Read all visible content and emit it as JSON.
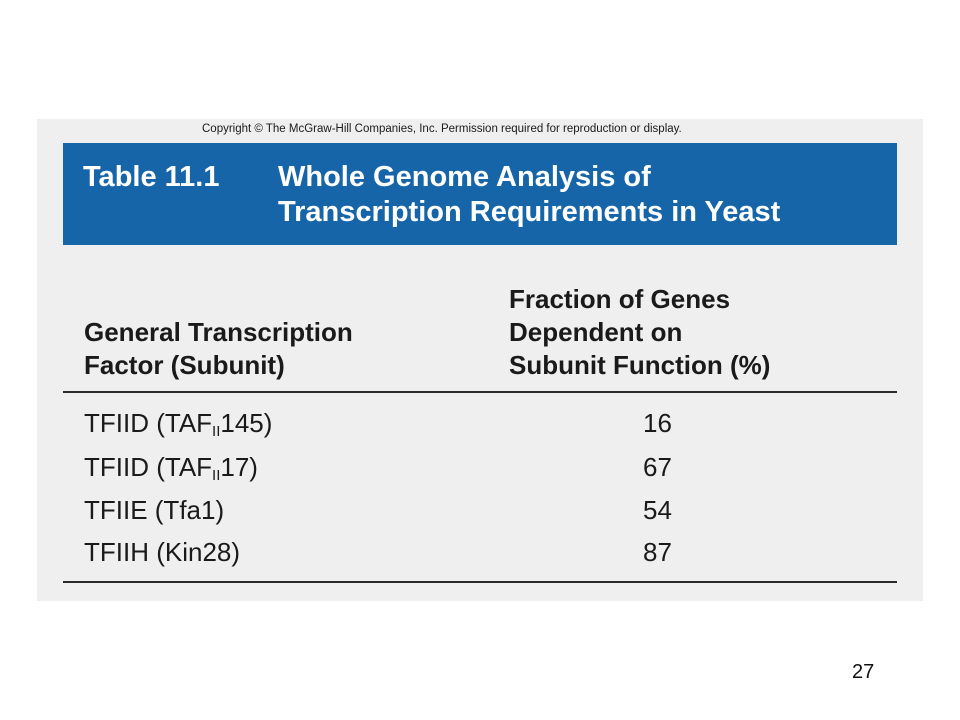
{
  "copyright": "Copyright © The McGraw-Hill Companies, Inc. Permission required for reproduction or display.",
  "table": {
    "number": "Table 11.1",
    "title_line1": "Whole Genome Analysis of",
    "title_line2": "Transcription Requirements in Yeast",
    "header_col1": [
      "General Transcription",
      "Factor (Subunit)"
    ],
    "header_col2": [
      "Fraction of Genes",
      "Dependent on",
      "Subunit Function (%)"
    ],
    "rows": [
      {
        "prefix": "TFIID (TAF",
        "sub": "II",
        "suffix": "145)",
        "value": "16"
      },
      {
        "prefix": "TFIID (TAF",
        "sub": "II",
        "suffix": "17)",
        "value": "67"
      },
      {
        "prefix": "TFIIE (Tfa1)",
        "sub": "",
        "suffix": "",
        "value": "54"
      },
      {
        "prefix": "TFIIH (Kin28)",
        "sub": "",
        "suffix": "",
        "value": "87"
      }
    ]
  },
  "page_number": "27",
  "colors": {
    "title_band": "#1765a9",
    "panel": "#efefef",
    "text": "#1a1a1a"
  }
}
